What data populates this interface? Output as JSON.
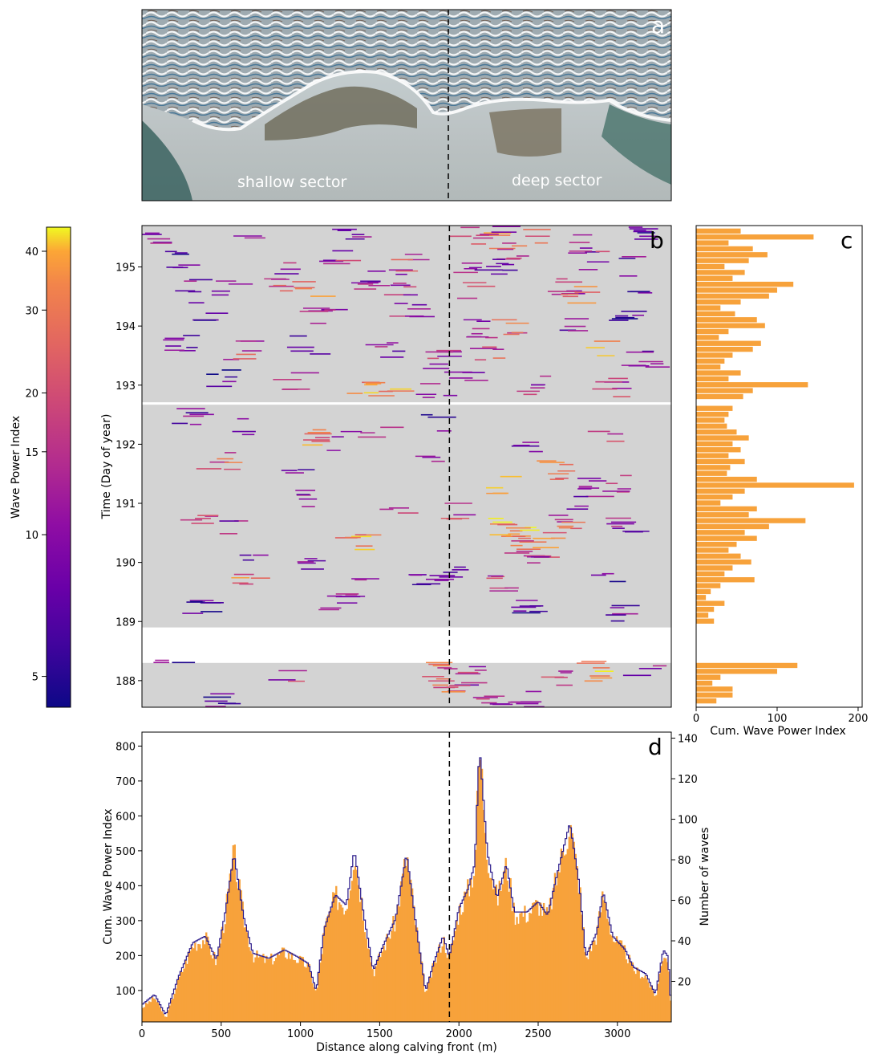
{
  "panel_a": {
    "letter": "a",
    "labels": [
      "shallow sector",
      "deep sector"
    ]
  },
  "colorbar": {
    "label": "Wave Power Index",
    "ticks": [
      5,
      10,
      15,
      20,
      30,
      40
    ],
    "range": [
      4.3,
      45
    ],
    "colormap": "plasma",
    "scale": "log"
  },
  "colors": {
    "bar_fill": "#f7a23b",
    "count_line": "#2a1a8a",
    "panel_b_background": "#d3d3d3",
    "divider": "#000000"
  },
  "chart_data": [
    {
      "panel": "b",
      "type": "heatmap",
      "letter": "b",
      "ylabel": "Time (Day of year)",
      "xlim": [
        0,
        3340
      ],
      "ylim": [
        187.55,
        195.7
      ],
      "yticks": [
        188,
        189,
        190,
        191,
        192,
        193,
        194,
        195
      ],
      "data_gaps_doy": [
        [
          188.3,
          188.9
        ],
        [
          192.67,
          192.71
        ]
      ],
      "sector_divider_m": 1940,
      "events": [
        {
          "x": 120,
          "y": 195.55,
          "w": 9
        },
        {
          "x": 640,
          "y": 195.6,
          "w": 12
        },
        {
          "x": 1320,
          "y": 195.6,
          "w": 8
        },
        {
          "x": 2080,
          "y": 195.55,
          "w": 14
        },
        {
          "x": 2200,
          "y": 195.45,
          "w": 22
        },
        {
          "x": 2270,
          "y": 195.6,
          "w": 11
        },
        {
          "x": 2350,
          "y": 195.3,
          "w": 18
        },
        {
          "x": 2500,
          "y": 195.55,
          "w": 26
        },
        {
          "x": 2780,
          "y": 195.4,
          "w": 9
        },
        {
          "x": 3120,
          "y": 195.5,
          "w": 7
        },
        {
          "x": 260,
          "y": 195.1,
          "w": 6
        },
        {
          "x": 940,
          "y": 195.05,
          "w": 10
        },
        {
          "x": 1230,
          "y": 195.15,
          "w": 11
        },
        {
          "x": 1700,
          "y": 195.05,
          "w": 14
        },
        {
          "x": 2100,
          "y": 194.95,
          "w": 9
        },
        {
          "x": 2260,
          "y": 195.0,
          "w": 7
        },
        {
          "x": 2880,
          "y": 195.1,
          "w": 12
        },
        {
          "x": 3050,
          "y": 195.0,
          "w": 8
        },
        {
          "x": 300,
          "y": 194.75,
          "w": 8
        },
        {
          "x": 560,
          "y": 194.65,
          "w": 11
        },
        {
          "x": 880,
          "y": 194.7,
          "w": 17
        },
        {
          "x": 1100,
          "y": 194.65,
          "w": 22
        },
        {
          "x": 1450,
          "y": 194.8,
          "w": 9
        },
        {
          "x": 1670,
          "y": 194.7,
          "w": 12
        },
        {
          "x": 2130,
          "y": 194.6,
          "w": 15
        },
        {
          "x": 2680,
          "y": 194.65,
          "w": 10
        },
        {
          "x": 2760,
          "y": 194.55,
          "w": 24
        },
        {
          "x": 3200,
          "y": 194.7,
          "w": 7
        },
        {
          "x": 400,
          "y": 194.25,
          "w": 7
        },
        {
          "x": 1150,
          "y": 194.2,
          "w": 9
        },
        {
          "x": 1700,
          "y": 194.3,
          "w": 11
        },
        {
          "x": 2130,
          "y": 193.95,
          "w": 10
        },
        {
          "x": 2300,
          "y": 194.0,
          "w": 18
        },
        {
          "x": 2720,
          "y": 194.05,
          "w": 8
        },
        {
          "x": 3060,
          "y": 194.1,
          "w": 6
        },
        {
          "x": 240,
          "y": 193.75,
          "w": 8
        },
        {
          "x": 620,
          "y": 193.6,
          "w": 14
        },
        {
          "x": 1050,
          "y": 193.7,
          "w": 7
        },
        {
          "x": 1560,
          "y": 193.6,
          "w": 9
        },
        {
          "x": 1880,
          "y": 193.45,
          "w": 11
        },
        {
          "x": 2180,
          "y": 193.55,
          "w": 16
        },
        {
          "x": 2900,
          "y": 193.6,
          "w": 25
        },
        {
          "x": 3180,
          "y": 193.45,
          "w": 8
        },
        {
          "x": 500,
          "y": 193.15,
          "w": 6
        },
        {
          "x": 980,
          "y": 193.1,
          "w": 10
        },
        {
          "x": 1400,
          "y": 192.95,
          "w": 28
        },
        {
          "x": 1580,
          "y": 192.9,
          "w": 33
        },
        {
          "x": 1870,
          "y": 192.9,
          "w": 12
        },
        {
          "x": 2040,
          "y": 193.05,
          "w": 9
        },
        {
          "x": 2500,
          "y": 193.0,
          "w": 11
        },
        {
          "x": 2960,
          "y": 192.95,
          "w": 14
        },
        {
          "x": 300,
          "y": 192.45,
          "w": 8
        },
        {
          "x": 620,
          "y": 192.3,
          "w": 10
        },
        {
          "x": 1150,
          "y": 192.15,
          "w": 24
        },
        {
          "x": 1260,
          "y": 192.05,
          "w": 12
        },
        {
          "x": 1500,
          "y": 192.2,
          "w": 9
        },
        {
          "x": 1850,
          "y": 192.4,
          "w": 7
        },
        {
          "x": 2420,
          "y": 192.05,
          "w": 8
        },
        {
          "x": 2960,
          "y": 192.1,
          "w": 12
        },
        {
          "x": 500,
          "y": 191.75,
          "w": 18
        },
        {
          "x": 1000,
          "y": 191.6,
          "w": 7
        },
        {
          "x": 1850,
          "y": 191.8,
          "w": 9
        },
        {
          "x": 2600,
          "y": 191.55,
          "w": 25
        },
        {
          "x": 2250,
          "y": 191.3,
          "w": 37
        },
        {
          "x": 2830,
          "y": 191.25,
          "w": 11
        },
        {
          "x": 3020,
          "y": 191.3,
          "w": 14
        },
        {
          "x": 1000,
          "y": 191.1,
          "w": 9
        },
        {
          "x": 1600,
          "y": 191.0,
          "w": 12
        },
        {
          "x": 2040,
          "y": 190.9,
          "w": 15
        },
        {
          "x": 2700,
          "y": 190.95,
          "w": 7
        },
        {
          "x": 380,
          "y": 190.65,
          "w": 13
        },
        {
          "x": 600,
          "y": 190.6,
          "w": 10
        },
        {
          "x": 2300,
          "y": 190.6,
          "w": 29
        },
        {
          "x": 2400,
          "y": 190.55,
          "w": 31
        },
        {
          "x": 2680,
          "y": 190.55,
          "w": 17
        },
        {
          "x": 3060,
          "y": 190.6,
          "w": 9
        },
        {
          "x": 1360,
          "y": 190.35,
          "w": 27
        },
        {
          "x": 2420,
          "y": 190.3,
          "w": 18
        },
        {
          "x": 2560,
          "y": 190.25,
          "w": 24
        },
        {
          "x": 700,
          "y": 190.05,
          "w": 8
        },
        {
          "x": 1100,
          "y": 189.95,
          "w": 7
        },
        {
          "x": 1950,
          "y": 189.85,
          "w": 9
        },
        {
          "x": 2460,
          "y": 190.0,
          "w": 12
        },
        {
          "x": 700,
          "y": 189.65,
          "w": 22
        },
        {
          "x": 1380,
          "y": 189.55,
          "w": 11
        },
        {
          "x": 1800,
          "y": 189.65,
          "w": 8
        },
        {
          "x": 2300,
          "y": 189.6,
          "w": 14
        },
        {
          "x": 2960,
          "y": 189.75,
          "w": 7
        },
        {
          "x": 400,
          "y": 189.25,
          "w": 6
        },
        {
          "x": 1250,
          "y": 189.3,
          "w": 9
        },
        {
          "x": 2450,
          "y": 189.2,
          "w": 7
        },
        {
          "x": 3000,
          "y": 189.1,
          "w": 8
        },
        {
          "x": 200,
          "y": 188.2,
          "w": 7
        },
        {
          "x": 900,
          "y": 188.15,
          "w": 12
        },
        {
          "x": 1900,
          "y": 188.2,
          "w": 18
        },
        {
          "x": 2100,
          "y": 188.1,
          "w": 11
        },
        {
          "x": 2600,
          "y": 188.05,
          "w": 14
        },
        {
          "x": 2850,
          "y": 188.15,
          "w": 28
        },
        {
          "x": 3200,
          "y": 188.2,
          "w": 8
        },
        {
          "x": 1950,
          "y": 187.85,
          "w": 20
        },
        {
          "x": 2200,
          "y": 187.75,
          "w": 11
        },
        {
          "x": 2400,
          "y": 187.65,
          "w": 9
        },
        {
          "x": 500,
          "y": 187.7,
          "w": 7
        }
      ]
    },
    {
      "panel": "c",
      "type": "bar",
      "orientation": "horizontal",
      "letter": "c",
      "xlabel": "Cum. Wave Power Index",
      "xlim": [
        0,
        205
      ],
      "xticks": [
        0,
        100,
        200
      ],
      "ylim": [
        187.55,
        195.7
      ],
      "bins": [
        {
          "t": 195.6,
          "v": 55
        },
        {
          "t": 195.5,
          "v": 145
        },
        {
          "t": 195.4,
          "v": 40
        },
        {
          "t": 195.3,
          "v": 70
        },
        {
          "t": 195.2,
          "v": 88
        },
        {
          "t": 195.1,
          "v": 65
        },
        {
          "t": 195.0,
          "v": 35
        },
        {
          "t": 194.9,
          "v": 60
        },
        {
          "t": 194.8,
          "v": 45
        },
        {
          "t": 194.7,
          "v": 120
        },
        {
          "t": 194.6,
          "v": 100
        },
        {
          "t": 194.5,
          "v": 90
        },
        {
          "t": 194.4,
          "v": 55
        },
        {
          "t": 194.3,
          "v": 30
        },
        {
          "t": 194.2,
          "v": 48
        },
        {
          "t": 194.1,
          "v": 75
        },
        {
          "t": 194.0,
          "v": 85
        },
        {
          "t": 193.9,
          "v": 40
        },
        {
          "t": 193.8,
          "v": 28
        },
        {
          "t": 193.7,
          "v": 80
        },
        {
          "t": 193.6,
          "v": 70
        },
        {
          "t": 193.5,
          "v": 45
        },
        {
          "t": 193.4,
          "v": 35
        },
        {
          "t": 193.3,
          "v": 30
        },
        {
          "t": 193.2,
          "v": 55
        },
        {
          "t": 193.1,
          "v": 40
        },
        {
          "t": 193.0,
          "v": 138
        },
        {
          "t": 192.9,
          "v": 70
        },
        {
          "t": 192.8,
          "v": 58
        },
        {
          "t": 192.6,
          "v": 45
        },
        {
          "t": 192.5,
          "v": 40
        },
        {
          "t": 192.4,
          "v": 35
        },
        {
          "t": 192.3,
          "v": 38
        },
        {
          "t": 192.2,
          "v": 50
        },
        {
          "t": 192.1,
          "v": 65
        },
        {
          "t": 192.0,
          "v": 45
        },
        {
          "t": 191.9,
          "v": 55
        },
        {
          "t": 191.8,
          "v": 40
        },
        {
          "t": 191.7,
          "v": 60
        },
        {
          "t": 191.6,
          "v": 42
        },
        {
          "t": 191.5,
          "v": 38
        },
        {
          "t": 191.4,
          "v": 75
        },
        {
          "t": 191.3,
          "v": 195
        },
        {
          "t": 191.2,
          "v": 60
        },
        {
          "t": 191.1,
          "v": 45
        },
        {
          "t": 191.0,
          "v": 30
        },
        {
          "t": 190.9,
          "v": 75
        },
        {
          "t": 190.8,
          "v": 65
        },
        {
          "t": 190.7,
          "v": 135
        },
        {
          "t": 190.6,
          "v": 90
        },
        {
          "t": 190.5,
          "v": 60
        },
        {
          "t": 190.4,
          "v": 75
        },
        {
          "t": 190.3,
          "v": 50
        },
        {
          "t": 190.2,
          "v": 40
        },
        {
          "t": 190.1,
          "v": 55
        },
        {
          "t": 190.0,
          "v": 68
        },
        {
          "t": 189.9,
          "v": 45
        },
        {
          "t": 189.8,
          "v": 35
        },
        {
          "t": 189.7,
          "v": 72
        },
        {
          "t": 189.6,
          "v": 30
        },
        {
          "t": 189.5,
          "v": 18
        },
        {
          "t": 189.4,
          "v": 12
        },
        {
          "t": 189.3,
          "v": 35
        },
        {
          "t": 189.2,
          "v": 22
        },
        {
          "t": 189.1,
          "v": 15
        },
        {
          "t": 189.0,
          "v": 22
        },
        {
          "t": 188.25,
          "v": 125
        },
        {
          "t": 188.15,
          "v": 100
        },
        {
          "t": 188.05,
          "v": 30
        },
        {
          "t": 187.95,
          "v": 20
        },
        {
          "t": 187.85,
          "v": 45
        },
        {
          "t": 187.75,
          "v": 45
        },
        {
          "t": 187.65,
          "v": 25
        }
      ]
    },
    {
      "panel": "d",
      "type": "bar",
      "letter": "d",
      "xlabel": "Distance along calving front (m)",
      "ylabel": "Cum. Wave Power Index",
      "y2label": "Number of waves",
      "xlim": [
        0,
        3340
      ],
      "ylim": [
        10,
        840
      ],
      "y2lim": [
        0,
        143
      ],
      "xticks": [
        0,
        500,
        1000,
        1500,
        2000,
        2500,
        3000
      ],
      "yticks": [
        100,
        200,
        300,
        400,
        500,
        600,
        700,
        800
      ],
      "y2ticks": [
        20,
        40,
        60,
        80,
        100,
        120,
        140
      ],
      "profile": [
        {
          "x": 0,
          "v": 50
        },
        {
          "x": 80,
          "v": 80
        },
        {
          "x": 150,
          "v": 20
        },
        {
          "x": 230,
          "v": 130
        },
        {
          "x": 320,
          "v": 230
        },
        {
          "x": 400,
          "v": 250
        },
        {
          "x": 470,
          "v": 180
        },
        {
          "x": 530,
          "v": 330
        },
        {
          "x": 580,
          "v": 490
        },
        {
          "x": 640,
          "v": 310
        },
        {
          "x": 700,
          "v": 200
        },
        {
          "x": 800,
          "v": 185
        },
        {
          "x": 900,
          "v": 210
        },
        {
          "x": 980,
          "v": 190
        },
        {
          "x": 1050,
          "v": 170
        },
        {
          "x": 1100,
          "v": 90
        },
        {
          "x": 1150,
          "v": 270
        },
        {
          "x": 1220,
          "v": 370
        },
        {
          "x": 1290,
          "v": 340
        },
        {
          "x": 1340,
          "v": 500
        },
        {
          "x": 1400,
          "v": 310
        },
        {
          "x": 1460,
          "v": 150
        },
        {
          "x": 1520,
          "v": 220
        },
        {
          "x": 1600,
          "v": 300
        },
        {
          "x": 1670,
          "v": 490
        },
        {
          "x": 1730,
          "v": 280
        },
        {
          "x": 1790,
          "v": 90
        },
        {
          "x": 1840,
          "v": 170
        },
        {
          "x": 1900,
          "v": 250
        },
        {
          "x": 1940,
          "v": 190
        },
        {
          "x": 2000,
          "v": 330
        },
        {
          "x": 2060,
          "v": 390
        },
        {
          "x": 2100,
          "v": 460
        },
        {
          "x": 2130,
          "v": 800
        },
        {
          "x": 2180,
          "v": 490
        },
        {
          "x": 2240,
          "v": 360
        },
        {
          "x": 2300,
          "v": 460
        },
        {
          "x": 2350,
          "v": 320
        },
        {
          "x": 2430,
          "v": 320
        },
        {
          "x": 2500,
          "v": 350
        },
        {
          "x": 2560,
          "v": 310
        },
        {
          "x": 2630,
          "v": 450
        },
        {
          "x": 2700,
          "v": 580
        },
        {
          "x": 2760,
          "v": 400
        },
        {
          "x": 2800,
          "v": 190
        },
        {
          "x": 2870,
          "v": 260
        },
        {
          "x": 2910,
          "v": 380
        },
        {
          "x": 2970,
          "v": 250
        },
        {
          "x": 3050,
          "v": 210
        },
        {
          "x": 3100,
          "v": 160
        },
        {
          "x": 3180,
          "v": 140
        },
        {
          "x": 3240,
          "v": 80
        },
        {
          "x": 3290,
          "v": 210
        },
        {
          "x": 3320,
          "v": 190
        },
        {
          "x": 3340,
          "v": 40
        }
      ]
    }
  ]
}
